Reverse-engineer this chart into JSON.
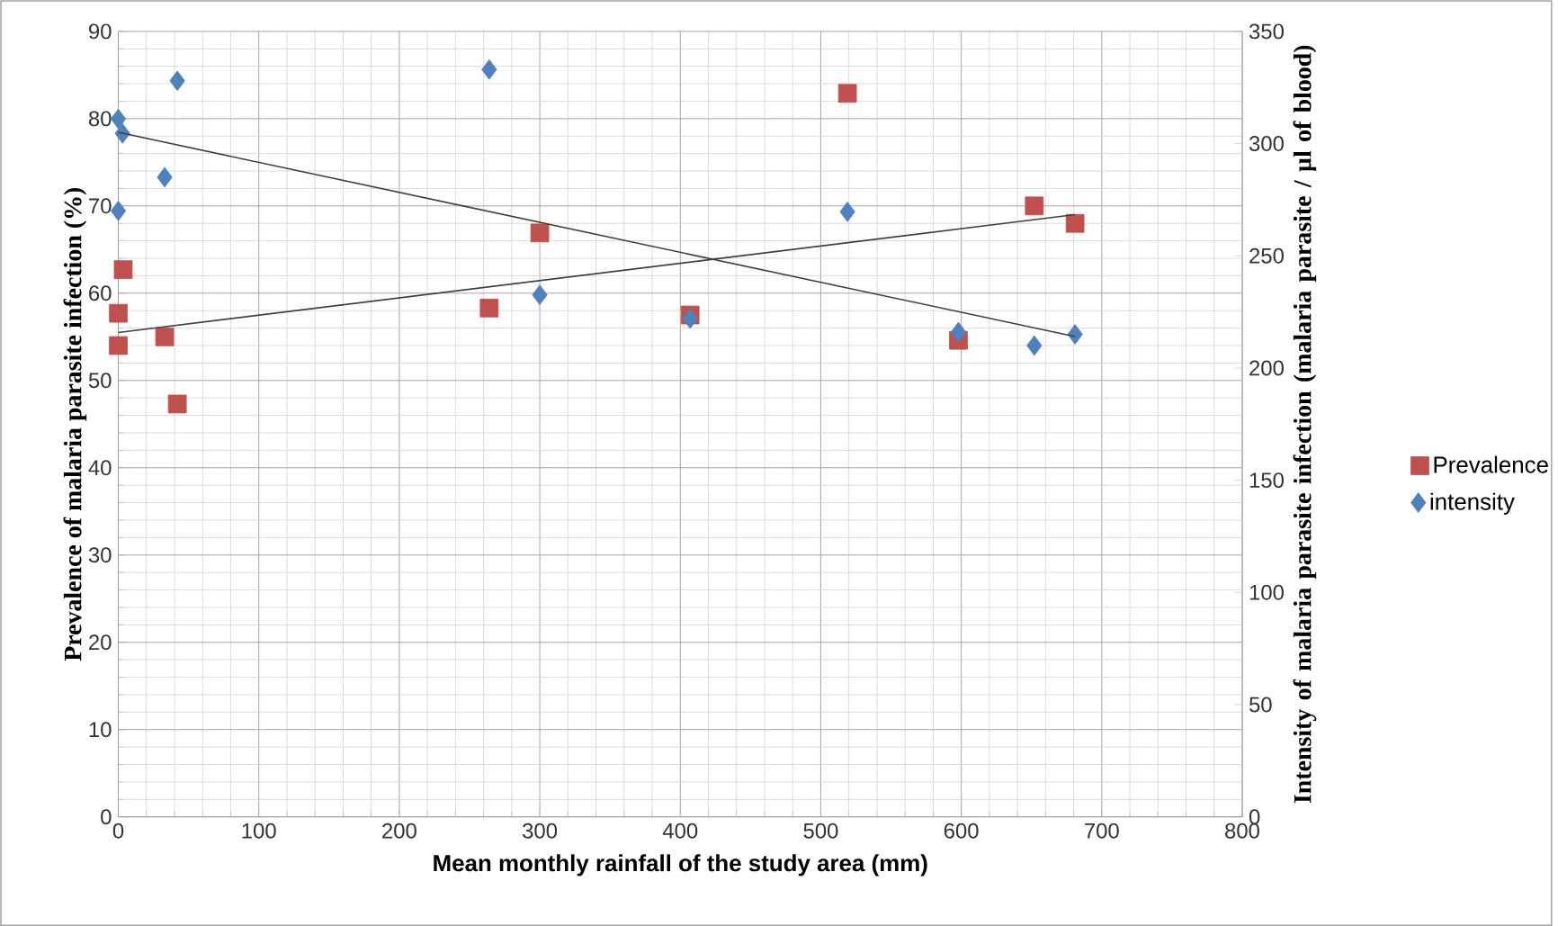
{
  "chart_data": {
    "type": "scatter",
    "xlabel": "Mean monthly  rainfall of the study area (mm)",
    "ylabel": "Prevalence of malaria  parasite infection (%)",
    "y2label": "Intensity of malaria parasite infection  (malaria parasite / µl  of blood)",
    "xlim": [
      0,
      800
    ],
    "xticks": [
      0,
      100,
      200,
      300,
      400,
      500,
      600,
      700,
      800
    ],
    "ylim": [
      0,
      90
    ],
    "yticks": [
      0,
      10,
      20,
      30,
      40,
      50,
      60,
      70,
      80,
      90
    ],
    "y2lim": [
      0,
      350
    ],
    "y2ticks": [
      0,
      50,
      100,
      150,
      200,
      250,
      300,
      350
    ],
    "grid": true,
    "legend": "right",
    "series": [
      {
        "name": "Prevalence",
        "color": "#c0504d",
        "marker": "square",
        "x": [
          0,
          0,
          3.5,
          33,
          42,
          264,
          300,
          407,
          519,
          598,
          652,
          681
        ],
        "values": [
          54.0,
          57.7,
          62.7,
          55.0,
          47.3,
          58.3,
          66.9,
          57.5,
          82.9,
          54.6,
          70.0,
          68.0
        ]
      },
      {
        "name": "intensity",
        "color": "#4f81bd",
        "marker": "diamond",
        "axis": "y2",
        "x": [
          0,
          3,
          0,
          33,
          42,
          264,
          300,
          407,
          519,
          598,
          652,
          681
        ],
        "values": [
          311,
          304.5,
          270,
          285,
          328,
          333,
          232.6,
          222,
          269.6,
          216,
          210,
          215
        ]
      },
      {
        "type": "line",
        "color": "#404040",
        "marker": "none",
        "x": [
          0,
          681
        ],
        "values": [
          55.5,
          69.0
        ]
      },
      {
        "type": "line",
        "color": "#404040",
        "marker": "none",
        "axis": "y2",
        "x": [
          0,
          681
        ],
        "values": [
          305,
          214
        ]
      }
    ]
  }
}
